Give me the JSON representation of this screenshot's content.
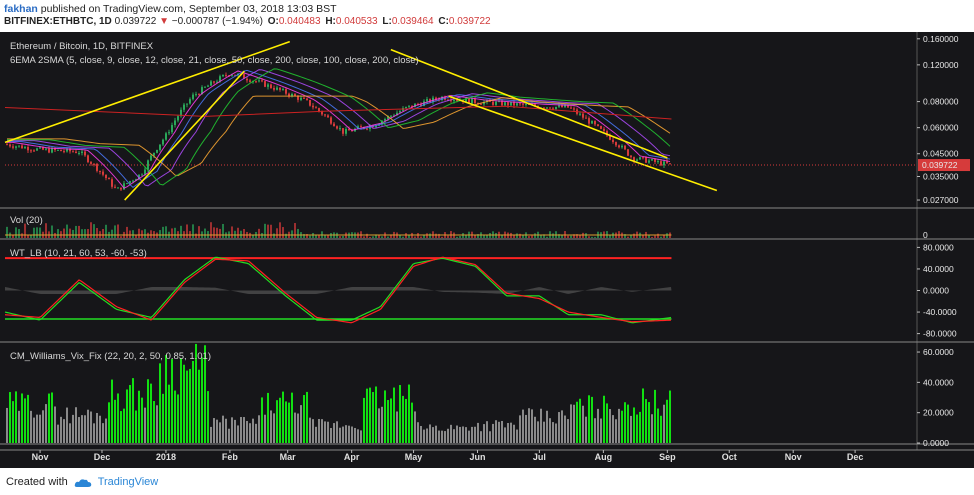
{
  "header": {
    "author": "fakhan",
    "published": "published on TradingView.com, September 03, 2018 13:03 BST",
    "symbol": "BITFINEX:ETHBTC, 1D",
    "last": "0.039722",
    "arrow": "▼",
    "change": "−0.000787 (−1.94%)",
    "o_label": "O:",
    "o": "0.040483",
    "h_label": "H:",
    "h": "0.040533",
    "l_label": "L:",
    "l": "0.039464",
    "c_label": "C:",
    "c": "0.039722"
  },
  "panes": {
    "price": {
      "title": "Ethereum / Bitcoin, 1D, BITFINEX",
      "indicator": "6EMA 2SMA (5, close, 9, close, 12, close, 21, close, 50, close, 200, close, 100, close, 200, close)"
    },
    "volume": {
      "title": "Vol (20)"
    },
    "wt": {
      "title": "WT_LB (10, 21, 60, 53, -60, -53)"
    },
    "vix": {
      "title": "CM_Williams_Vix_Fix (22, 20, 2, 50, 0.85, 1.01)"
    }
  },
  "footer": {
    "created_with": "Created with",
    "brand": "TradingView"
  },
  "colors": {
    "background": "#161619",
    "up": "#2aa85a",
    "down": "#d63b3b",
    "trendline": "#ffee00",
    "vix_green": "#11e011",
    "vix_gray": "#8a8a8a"
  },
  "chart_data": [
    {
      "type": "line",
      "title": "Ethereum / Bitcoin, 1D, BITFINEX",
      "subtitle": "6EMA 2SMA (5, close, 9, close, 12, close, 21, close, 50, close, 200, close, 100, close, 200, close)",
      "x_ticks": [
        "Nov",
        "Dec",
        "2018",
        "Feb",
        "Mar",
        "Apr",
        "May",
        "Jun",
        "Jul",
        "Aug",
        "Sep",
        "Oct",
        "Nov",
        "Dec"
      ],
      "y_ticks": [
        "0.160000",
        "0.120000",
        "0.080000",
        "0.060000",
        "0.045000",
        "0.035000",
        "0.027000"
      ],
      "y_scale": "log",
      "ylim": [
        0.025,
        0.165
      ],
      "last_price_label": "0.039722",
      "x": [
        "2017-10-15",
        "2017-11-01",
        "2017-11-20",
        "2017-12-08",
        "2017-12-20",
        "2018-01-01",
        "2018-01-14",
        "2018-02-01",
        "2018-02-20",
        "2018-03-10",
        "2018-03-28",
        "2018-04-12",
        "2018-04-28",
        "2018-05-15",
        "2018-05-31",
        "2018-06-15",
        "2018-07-01",
        "2018-07-15",
        "2018-07-30",
        "2018-08-15",
        "2018-09-03"
      ],
      "series": [
        {
          "values": [
            0.05,
            0.047,
            0.046,
            0.03,
            0.036,
            0.055,
            0.085,
            0.11,
            0.095,
            0.08,
            0.057,
            0.062,
            0.075,
            0.084,
            0.08,
            0.078,
            0.076,
            0.075,
            0.059,
            0.043,
            0.0397
          ]
        }
      ],
      "trendlines": [
        {
          "from": [
            "2017-10-15",
            0.051
          ],
          "to": [
            "2018-03-02",
            0.155
          ]
        },
        {
          "from": [
            "2017-12-12",
            0.027
          ],
          "to": [
            "2018-02-08",
            0.112
          ]
        },
        {
          "from": [
            "2018-05-18",
            0.085
          ],
          "to": [
            "2018-09-25",
            0.03
          ]
        },
        {
          "from": [
            "2018-04-20",
            0.142
          ],
          "to": [
            "2018-09-01",
            0.043
          ]
        }
      ]
    },
    {
      "type": "bar",
      "title": "Vol (20)",
      "y_ticks": [
        "0"
      ]
    },
    {
      "type": "line",
      "title": "WT_LB (10, 21, 60, 53, -60, -53)",
      "y_ticks": [
        "80.0000",
        "40.0000",
        "0.0000",
        "-40.0000",
        "-80.0000"
      ],
      "ylim": [
        -90,
        90
      ],
      "reference_lines": [
        60,
        -53
      ],
      "x": [
        "2017-10-15",
        "2017-11-01",
        "2017-11-20",
        "2017-12-08",
        "2017-12-25",
        "2018-01-10",
        "2018-01-25",
        "2018-02-10",
        "2018-02-28",
        "2018-03-15",
        "2018-04-01",
        "2018-04-15",
        "2018-05-01",
        "2018-05-15",
        "2018-05-31",
        "2018-06-15",
        "2018-07-01",
        "2018-07-15",
        "2018-07-31",
        "2018-08-15",
        "2018-09-03"
      ],
      "series": [
        {
          "values": [
            -40,
            -55,
            15,
            -35,
            -50,
            20,
            62,
            50,
            -10,
            -55,
            -55,
            -30,
            50,
            60,
            45,
            -10,
            -10,
            -45,
            -45,
            -60,
            -50
          ]
        },
        {
          "values": [
            -45,
            -50,
            20,
            -30,
            -55,
            15,
            58,
            55,
            -5,
            -50,
            -60,
            -35,
            45,
            62,
            48,
            -5,
            -15,
            -40,
            -50,
            -58,
            -55
          ]
        }
      ]
    },
    {
      "type": "bar",
      "title": "CM_Williams_Vix_Fix (22, 20, 2, 50, 0.85, 1.01)",
      "y_ticks": [
        "60.0000",
        "40.0000",
        "20.0000",
        "0.0000"
      ],
      "ylim": [
        0,
        62
      ],
      "x": [
        "2017-10",
        "2017-11",
        "2017-12-a",
        "2017-12-b",
        "2018-01",
        "2018-02",
        "2018-03",
        "2018-04",
        "2018-05",
        "2018-06",
        "2018-07",
        "2018-08",
        "2018-09"
      ],
      "values": [
        30,
        22,
        38,
        58,
        16,
        30,
        14,
        34,
        12,
        14,
        20,
        28,
        32
      ]
    }
  ]
}
